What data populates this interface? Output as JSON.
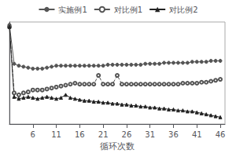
{
  "chart_data": {
    "type": "line",
    "xlabel": "循环次数",
    "x": [
      1,
      2,
      3,
      4,
      5,
      6,
      7,
      8,
      9,
      10,
      11,
      12,
      13,
      14,
      15,
      16,
      17,
      18,
      19,
      20,
      21,
      22,
      23,
      24,
      25,
      26,
      27,
      28,
      29,
      30,
      31,
      32,
      33,
      34,
      35,
      36,
      37,
      38,
      39,
      40,
      41,
      42,
      43,
      44,
      45,
      46
    ],
    "series": [
      {
        "name": "实施例1",
        "color": "#555555",
        "marker": "circle",
        "line_style": "solid",
        "values": [
          1.02,
          0.62,
          0.6,
          0.59,
          0.58,
          0.57,
          0.57,
          0.57,
          0.58,
          0.59,
          0.6,
          0.6,
          0.6,
          0.6,
          0.6,
          0.6,
          0.6,
          0.6,
          0.6,
          0.6,
          0.6,
          0.61,
          0.61,
          0.61,
          0.61,
          0.61,
          0.61,
          0.61,
          0.61,
          0.62,
          0.62,
          0.62,
          0.62,
          0.63,
          0.63,
          0.63,
          0.63,
          0.63,
          0.63,
          0.64,
          0.64,
          0.64,
          0.64,
          0.65,
          0.65,
          0.65
        ]
      },
      {
        "name": "对比例1",
        "color": "#555555",
        "marker": "open_circle",
        "line_style": "dashed",
        "values": [
          1.0,
          0.32,
          0.3,
          0.32,
          0.33,
          0.35,
          0.35,
          0.35,
          0.36,
          0.37,
          0.38,
          0.39,
          0.4,
          0.41,
          0.42,
          0.41,
          0.41,
          0.41,
          0.41,
          0.5,
          0.41,
          0.41,
          0.41,
          0.5,
          0.41,
          0.41,
          0.41,
          0.41,
          0.41,
          0.41,
          0.41,
          0.41,
          0.41,
          0.41,
          0.41,
          0.41,
          0.41,
          0.42,
          0.42,
          0.42,
          0.42,
          0.43,
          0.43,
          0.44,
          0.45,
          0.46
        ]
      },
      {
        "name": "对比例2",
        "color": "#222222",
        "marker": "triangle",
        "line_style": "solid",
        "values": [
          1.0,
          0.28,
          0.26,
          0.27,
          0.28,
          0.27,
          0.26,
          0.27,
          0.28,
          0.27,
          0.26,
          0.27,
          0.3,
          0.27,
          0.26,
          0.25,
          0.24,
          0.24,
          0.23,
          0.23,
          0.22,
          0.22,
          0.21,
          0.21,
          0.2,
          0.2,
          0.19,
          0.19,
          0.18,
          0.18,
          0.17,
          0.17,
          0.16,
          0.16,
          0.15,
          0.15,
          0.14,
          0.14,
          0.13,
          0.13,
          0.12,
          0.11,
          0.1,
          0.09,
          0.08,
          0.07
        ]
      }
    ],
    "xlim": [
      1,
      47
    ],
    "xticks": [
      6,
      11,
      16,
      21,
      26,
      31,
      36,
      41,
      46
    ],
    "ylim": [
      0,
      1.05
    ],
    "yticks": [],
    "tick_labels": "x",
    "grid": false,
    "legend": "top"
  }
}
